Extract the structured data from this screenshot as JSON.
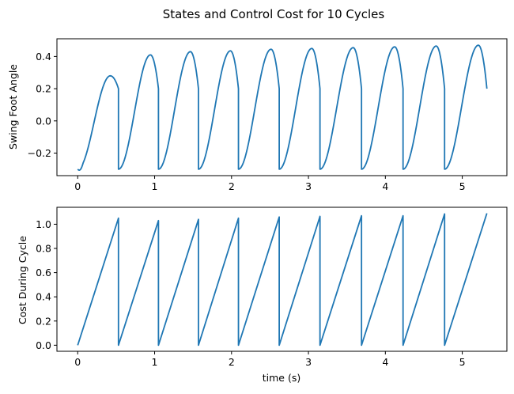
{
  "figure": {
    "title": "States and Control Cost for 10 Cycles"
  },
  "colors": {
    "series": "#1f77b4",
    "axes": "#000000",
    "background": "#ffffff"
  },
  "chart_data": [
    {
      "type": "line",
      "xlabel": "",
      "ylabel": "Swing Foot Angle",
      "xlim": [
        -0.27,
        5.58
      ],
      "ylim": [
        -0.34,
        0.51
      ],
      "xticks": [
        0,
        1,
        2,
        3,
        4,
        5
      ],
      "xtick_labels": [
        "0",
        "1",
        "2",
        "3",
        "4",
        "5"
      ],
      "yticks": [
        -0.2,
        0.0,
        0.2,
        0.4
      ],
      "ytick_labels": [
        "−0.2",
        "0.0",
        "0.2",
        "0.4"
      ],
      "grid": false,
      "series": [
        {
          "description": "sawtooth-like swing trajectory over 10 cycles; each cycle starts at -0.30, rises to a peak, and ends at 0.20 before resetting",
          "cycle_boundaries": [
            0,
            0.53,
            1.05,
            1.57,
            2.09,
            2.62,
            3.15,
            3.69,
            4.23,
            4.77,
            5.32
          ],
          "peaks": [
            0.28,
            0.41,
            0.43,
            0.435,
            0.445,
            0.45,
            0.455,
            0.46,
            0.465,
            0.47
          ],
          "start_value": -0.3,
          "end_value": 0.2
        }
      ]
    },
    {
      "type": "line",
      "xlabel": "time (s)",
      "ylabel": "Cost During Cycle",
      "xlim": [
        -0.27,
        5.58
      ],
      "ylim": [
        -0.05,
        1.14
      ],
      "xticks": [
        0,
        1,
        2,
        3,
        4,
        5
      ],
      "xtick_labels": [
        "0",
        "1",
        "2",
        "3",
        "4",
        "5"
      ],
      "yticks": [
        0.0,
        0.2,
        0.4,
        0.6,
        0.8,
        1.0
      ],
      "ytick_labels": [
        "0.0",
        "0.2",
        "0.4",
        "0.6",
        "0.8",
        "1.0"
      ],
      "grid": false,
      "series": [
        {
          "description": "cost accumulates linearly from 0 within each cycle and resets to 0 at each cycle boundary",
          "cycle_boundaries": [
            0,
            0.53,
            1.05,
            1.57,
            2.09,
            2.62,
            3.15,
            3.69,
            4.23,
            4.77,
            5.32
          ],
          "end_of_cycle_costs": [
            1.05,
            1.03,
            1.04,
            1.05,
            1.06,
            1.065,
            1.07,
            1.07,
            1.085,
            1.09
          ]
        }
      ]
    }
  ]
}
